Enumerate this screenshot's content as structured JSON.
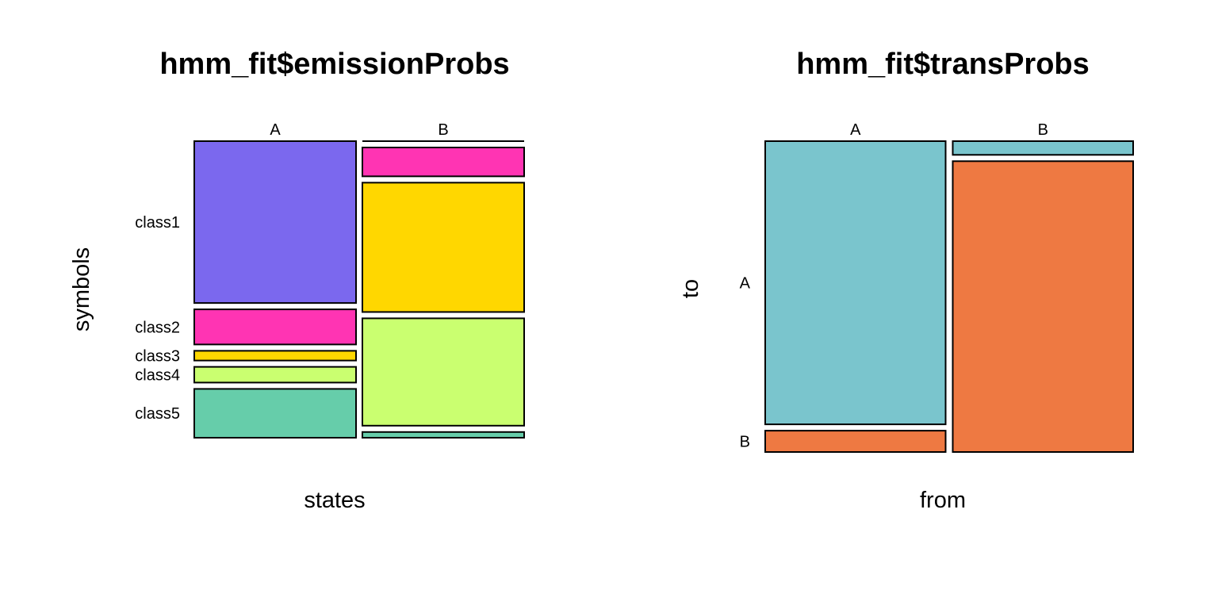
{
  "chart_data": [
    {
      "type": "mosaic",
      "title": "hmm_fit$emissionProbs",
      "xlabel": "states",
      "ylabel": "symbols",
      "x_categories": [
        "A",
        "B"
      ],
      "y_categories": [
        "class1",
        "class2",
        "class3",
        "class4",
        "class5"
      ],
      "colors": [
        "#7B68EE",
        "#FF34B3",
        "#FFD700",
        "#CAFF70",
        "#66CDAA"
      ],
      "x_proportions": [
        0.5,
        0.5
      ],
      "conditional": [
        {
          "x": "A",
          "values": [
            0.567,
            0.123,
            0.034,
            0.055,
            0.171
          ]
        },
        {
          "x": "B",
          "values": [
            0.0,
            0.101,
            0.453,
            0.376,
            0.02
          ]
        }
      ]
    },
    {
      "type": "mosaic",
      "title": "hmm_fit$transProbs",
      "xlabel": "from",
      "ylabel": "to",
      "x_categories": [
        "A",
        "B"
      ],
      "y_categories": [
        "A",
        "B"
      ],
      "colors": [
        "#7AC5CD",
        "#EE7942"
      ],
      "x_proportions": [
        0.5,
        0.5
      ],
      "conditional": [
        {
          "x": "A",
          "values": [
            0.93,
            0.07
          ]
        },
        {
          "x": "B",
          "values": [
            0.045,
            0.955
          ]
        }
      ]
    }
  ]
}
